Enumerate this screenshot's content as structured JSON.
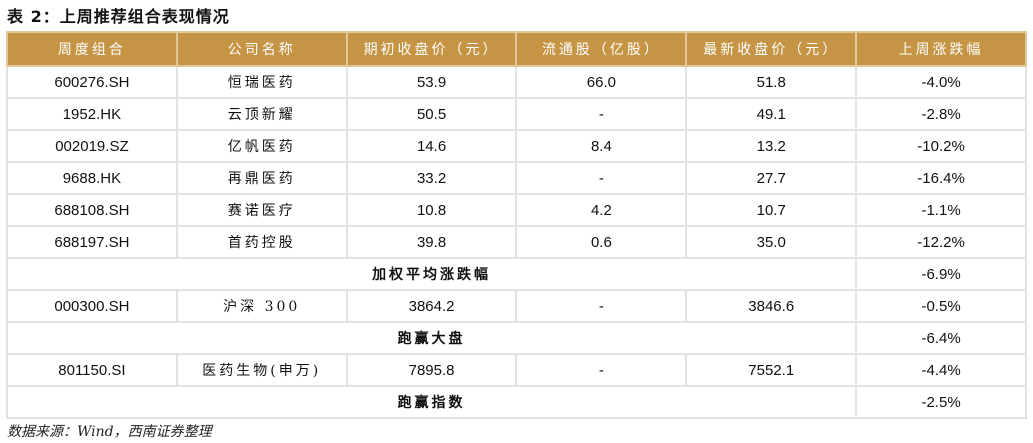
{
  "title": "表 2：上周推荐组合表现情况",
  "header_color": "#C59444",
  "headers": [
    "周度组合",
    "公司名称",
    "期初收盘价（元）",
    "流通股（亿股）",
    "最新收盘价（元）",
    "上周涨跌幅"
  ],
  "rows": [
    [
      "600276.SH",
      "恒瑞医药",
      "53.9",
      "66.0",
      "51.8",
      "-4.0%"
    ],
    [
      "1952.HK",
      "云顶新耀",
      "50.5",
      "-",
      "49.1",
      "-2.8%"
    ],
    [
      "002019.SZ",
      "亿帆医药",
      "14.6",
      "8.4",
      "13.2",
      "-10.2%"
    ],
    [
      "9688.HK",
      "再鼎医药",
      "33.2",
      "-",
      "27.7",
      "-16.4%"
    ],
    [
      "688108.SH",
      "赛诺医疗",
      "10.8",
      "4.2",
      "10.7",
      "-1.1%"
    ],
    [
      "688197.SH",
      "首药控股",
      "39.8",
      "0.6",
      "35.0",
      "-12.2%"
    ]
  ],
  "weighted": {
    "label": "加权平均涨跌幅",
    "value": "-6.9%"
  },
  "index1": [
    "000300.SH",
    "沪深 300",
    "3864.2",
    "-",
    "3846.6",
    "-0.5%"
  ],
  "beat_market": {
    "label": "跑赢大盘",
    "value": "-6.4%"
  },
  "index2": [
    "801150.SI",
    "医药生物(申万)",
    "7895.8",
    "-",
    "7552.1",
    "-4.4%"
  ],
  "beat_index": {
    "label": "跑赢指数",
    "value": "-2.5%"
  },
  "source": "数据来源：Wind，西南证券整理"
}
